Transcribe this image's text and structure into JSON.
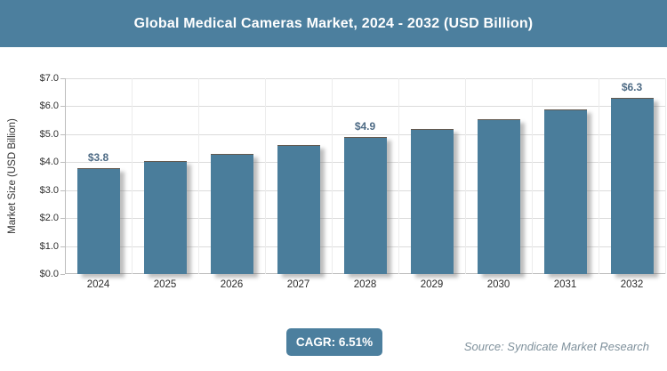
{
  "header": {
    "title": "Global Medical Cameras Market, 2024 - 2032 (USD Billion)"
  },
  "chart_data": {
    "type": "bar",
    "title": "Global Medical Cameras Market, 2024 - 2032 (USD Billion)",
    "categories": [
      "2024",
      "2025",
      "2026",
      "2027",
      "2028",
      "2029",
      "2030",
      "2031",
      "2032"
    ],
    "values": [
      3.8,
      4.05,
      4.3,
      4.6,
      4.9,
      5.2,
      5.55,
      5.9,
      6.3
    ],
    "data_labels": [
      "$3.8",
      null,
      null,
      null,
      "$4.9",
      null,
      null,
      null,
      "$6.3"
    ],
    "xlabel": "",
    "ylabel": "Market Size (USD Billion)",
    "ylim": [
      0,
      7
    ],
    "ytick_step": 1,
    "ytick_labels": [
      "$0.0",
      "$1.0",
      "$2.0",
      "$3.0",
      "$4.0",
      "$5.0",
      "$6.0",
      "$7.0"
    ],
    "grid": true,
    "legend": "none",
    "bar_color": "#4a7d9b"
  },
  "footer": {
    "cagr_label": "CAGR: 6.51%",
    "source": "Source: Syndicate Market Research"
  },
  "colors": {
    "header_bg": "#4c7f9e",
    "badge_bg": "#4c7f9e",
    "bar_fill": "#4a7d9b",
    "data_label": "#4e6b85",
    "source_text": "#7f919c",
    "gridline": "#dcdcdc",
    "axis_line": "#bdbdbd"
  }
}
